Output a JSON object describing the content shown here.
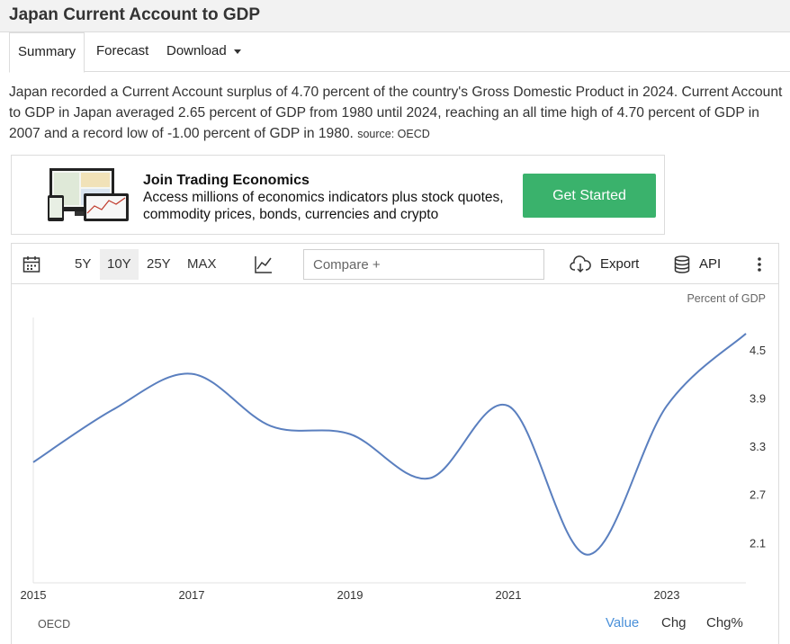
{
  "page": {
    "title": "Japan Current Account to GDP"
  },
  "tabs": [
    {
      "label": "Summary"
    },
    {
      "label": "Forecast"
    },
    {
      "label": "Download"
    }
  ],
  "description": {
    "text": "Japan recorded a Current Account surplus of 4.70 percent of the country's Gross Domestic Product in 2024. Current Account to GDP in Japan averaged 2.65 percent of GDP from 1980 until 2024, reaching an all time high of 4.70 percent of GDP in 2007 and a record low of -1.00 percent of GDP in 1980.",
    "source": "source: OECD"
  },
  "promo": {
    "title": "Join Trading Economics",
    "text": "Access millions of economics indicators plus stock quotes, commodity prices, bonds, currencies and crypto",
    "cta_label": "Get Started",
    "cta_color": "#3ab26c"
  },
  "toolbar": {
    "ranges": [
      "5Y",
      "10Y",
      "25Y",
      "MAX"
    ],
    "active_range": "10Y",
    "compare_placeholder": "Compare +",
    "export_label": "Export",
    "api_label": "API",
    "icons": [
      "calendar-icon",
      "line-chart-icon",
      "cloud-download-icon",
      "database-icon",
      "more-vertical-icon"
    ]
  },
  "chart_footer": {
    "source": "OECD",
    "modes": [
      "Value",
      "Chg",
      "Chg%"
    ],
    "active_mode": "Value"
  },
  "chart_data": {
    "type": "line",
    "unit_label": "Percent of GDP",
    "line_color": "#5a7fbf",
    "x": [
      2015,
      2016,
      2017,
      2018,
      2019,
      2020,
      2021,
      2022,
      2023,
      2024
    ],
    "series": [
      {
        "values": [
          3.1,
          3.75,
          4.2,
          3.55,
          3.45,
          2.9,
          3.8,
          1.95,
          3.8,
          4.7
        ]
      }
    ],
    "x_ticks": [
      "2015",
      "2017",
      "2019",
      "2021",
      "2023"
    ],
    "x_tick_values": [
      2015,
      2017,
      2019,
      2021,
      2023
    ],
    "y_ticks": [
      "4.5",
      "3.9",
      "3.3",
      "2.7",
      "2.1"
    ],
    "y_tick_values": [
      4.5,
      3.9,
      3.3,
      2.7,
      2.1
    ],
    "xlim": [
      2015,
      2024
    ],
    "ylim": [
      1.6,
      4.9
    ],
    "grid": false,
    "y_axis_position": "right"
  }
}
